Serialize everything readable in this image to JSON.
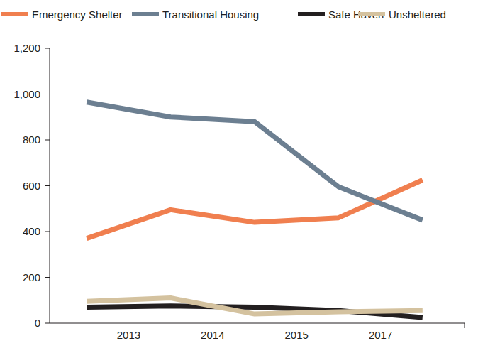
{
  "chart_data": {
    "type": "line",
    "categories": [
      null,
      "2013",
      "2014",
      "2015",
      "2017"
    ],
    "series": [
      {
        "name": "Emergency Shelter",
        "color": "#f07f4f",
        "values": [
          370,
          495,
          440,
          460,
          625
        ]
      },
      {
        "name": "Transitional Housing",
        "color": "#6c7f91",
        "values": [
          965,
          900,
          880,
          595,
          450
        ]
      },
      {
        "name": "Safe Haven",
        "color": "#231f20",
        "values": [
          70,
          75,
          70,
          55,
          25
        ]
      },
      {
        "name": "Unsheltered",
        "color": "#d4c29f",
        "values": [
          95,
          110,
          40,
          50,
          55
        ]
      }
    ],
    "ylim": [
      0,
      1200
    ],
    "yticks": [
      0,
      200,
      400,
      600,
      800,
      {
        "value": 1000,
        "label": "1,000"
      },
      {
        "value": 1200,
        "label": "1,200"
      }
    ],
    "grid": false,
    "legend": "top"
  }
}
